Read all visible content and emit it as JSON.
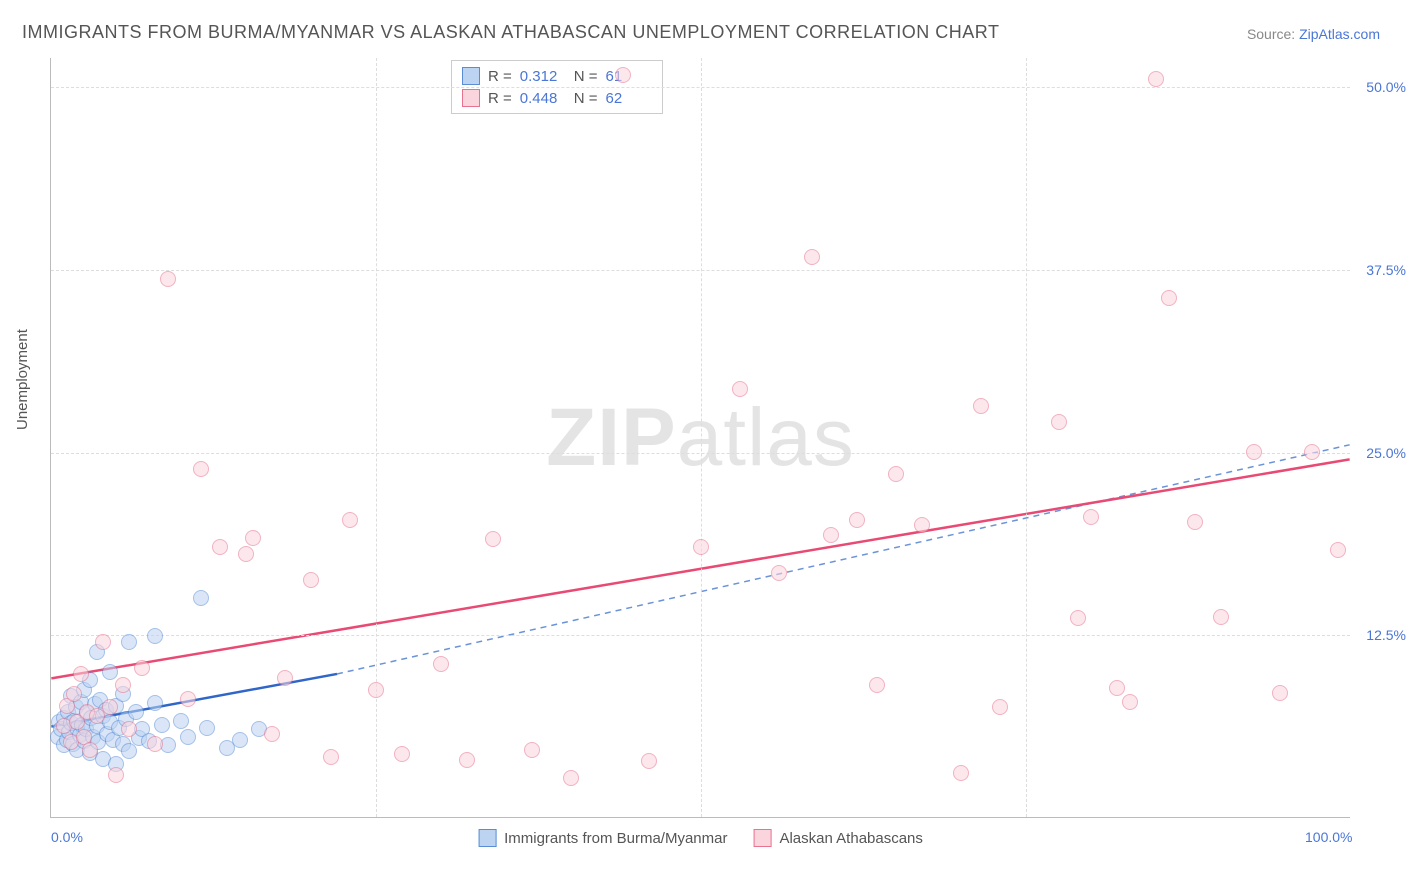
{
  "title": "IMMIGRANTS FROM BURMA/MYANMAR VS ALASKAN ATHABASCAN UNEMPLOYMENT CORRELATION CHART",
  "source_label": "Source:",
  "source_name": "ZipAtlas.com",
  "y_axis_title": "Unemployment",
  "watermark_a": "ZIP",
  "watermark_b": "atlas",
  "chart": {
    "type": "scatter",
    "background_color": "#ffffff",
    "grid_color": "#dddddd",
    "axis_color": "#bbbbbb",
    "text_color": "#555555",
    "value_color": "#4a76d6",
    "xlim": [
      0,
      100
    ],
    "ylim": [
      0,
      52
    ],
    "x_ticks": [
      0,
      100
    ],
    "x_tick_labels": [
      "0.0%",
      "100.0%"
    ],
    "x_minor_gridlines": [
      25,
      50,
      75
    ],
    "y_ticks": [
      12.5,
      25.0,
      37.5,
      50.0
    ],
    "y_tick_labels": [
      "12.5%",
      "25.0%",
      "37.5%",
      "50.0%"
    ],
    "marker_radius": 8,
    "marker_border_width": 1.5,
    "series": [
      {
        "name": "Immigrants from Burma/Myanmar",
        "fill_color": "#bcd3f2",
        "stroke_color": "#5a8dd6",
        "fill_opacity": 0.55,
        "R": "0.312",
        "N": "61",
        "trend_solid": {
          "x1": 0,
          "y1": 6.2,
          "x2": 22,
          "y2": 9.8,
          "width": 2.5,
          "color": "#2f66c8"
        },
        "trend_dashed": {
          "x1": 22,
          "y1": 9.8,
          "x2": 100,
          "y2": 25.5,
          "width": 1.5,
          "color": "#6a93d8"
        },
        "points": [
          [
            0.5,
            5.5
          ],
          [
            0.6,
            6.5
          ],
          [
            0.8,
            6.0
          ],
          [
            1.0,
            4.9
          ],
          [
            1.0,
            6.8
          ],
          [
            1.2,
            5.3
          ],
          [
            1.3,
            7.2
          ],
          [
            1.4,
            5.8
          ],
          [
            1.5,
            6.4
          ],
          [
            1.5,
            8.3
          ],
          [
            1.7,
            5.0
          ],
          [
            1.8,
            6.6
          ],
          [
            1.9,
            7.5
          ],
          [
            2.0,
            4.6
          ],
          [
            2.0,
            6.1
          ],
          [
            2.2,
            5.6
          ],
          [
            2.3,
            7.9
          ],
          [
            2.4,
            6.3
          ],
          [
            2.5,
            5.2
          ],
          [
            2.5,
            8.7
          ],
          [
            2.7,
            6.0
          ],
          [
            2.8,
            7.1
          ],
          [
            3.0,
            4.4
          ],
          [
            3.0,
            9.4
          ],
          [
            3.1,
            6.8
          ],
          [
            3.2,
            5.5
          ],
          [
            3.4,
            7.7
          ],
          [
            3.5,
            6.2
          ],
          [
            3.5,
            11.3
          ],
          [
            3.6,
            5.1
          ],
          [
            3.8,
            8.0
          ],
          [
            4.0,
            6.9
          ],
          [
            4.0,
            4.0
          ],
          [
            4.2,
            7.3
          ],
          [
            4.3,
            5.7
          ],
          [
            4.5,
            6.5
          ],
          [
            4.5,
            9.9
          ],
          [
            4.8,
            5.3
          ],
          [
            5.0,
            7.6
          ],
          [
            5.0,
            3.6
          ],
          [
            5.2,
            6.1
          ],
          [
            5.5,
            8.4
          ],
          [
            5.5,
            5.0
          ],
          [
            5.8,
            6.7
          ],
          [
            6.0,
            4.5
          ],
          [
            6.0,
            12.0
          ],
          [
            6.5,
            7.2
          ],
          [
            6.8,
            5.4
          ],
          [
            7.0,
            6.0
          ],
          [
            7.5,
            5.2
          ],
          [
            8.0,
            7.8
          ],
          [
            8.0,
            12.4
          ],
          [
            8.5,
            6.3
          ],
          [
            9.0,
            4.9
          ],
          [
            10.0,
            6.6
          ],
          [
            10.5,
            5.5
          ],
          [
            11.5,
            15.0
          ],
          [
            12.0,
            6.1
          ],
          [
            13.5,
            4.7
          ],
          [
            14.5,
            5.3
          ],
          [
            16.0,
            6.0
          ]
        ]
      },
      {
        "name": "Alaskan Athabascans",
        "fill_color": "#fbd5de",
        "stroke_color": "#e8738f",
        "fill_opacity": 0.55,
        "R": "0.448",
        "N": "62",
        "trend_solid": {
          "x1": 0,
          "y1": 9.5,
          "x2": 100,
          "y2": 24.5,
          "width": 2.5,
          "color": "#e84a73"
        },
        "points": [
          [
            1.0,
            6.2
          ],
          [
            1.2,
            7.6
          ],
          [
            1.5,
            5.1
          ],
          [
            1.8,
            8.4
          ],
          [
            2.0,
            6.5
          ],
          [
            2.3,
            9.8
          ],
          [
            2.5,
            5.5
          ],
          [
            2.8,
            7.2
          ],
          [
            3.0,
            4.6
          ],
          [
            3.5,
            6.9
          ],
          [
            4.0,
            12.0
          ],
          [
            4.5,
            7.5
          ],
          [
            5.0,
            2.9
          ],
          [
            5.5,
            9.0
          ],
          [
            6.0,
            6.0
          ],
          [
            7.0,
            10.2
          ],
          [
            8.0,
            5.0
          ],
          [
            9.0,
            36.8
          ],
          [
            10.5,
            8.1
          ],
          [
            11.5,
            23.8
          ],
          [
            13.0,
            18.5
          ],
          [
            15.0,
            18.0
          ],
          [
            15.5,
            19.1
          ],
          [
            17.0,
            5.7
          ],
          [
            18.0,
            9.5
          ],
          [
            20.0,
            16.2
          ],
          [
            21.5,
            4.1
          ],
          [
            23.0,
            20.3
          ],
          [
            25.0,
            8.7
          ],
          [
            27.0,
            4.3
          ],
          [
            30.0,
            10.5
          ],
          [
            32.0,
            3.9
          ],
          [
            34.0,
            19.0
          ],
          [
            37.0,
            4.6
          ],
          [
            40.0,
            2.7
          ],
          [
            44.0,
            50.8
          ],
          [
            46.0,
            3.8
          ],
          [
            50.0,
            18.5
          ],
          [
            53.0,
            29.3
          ],
          [
            56.0,
            16.7
          ],
          [
            58.5,
            38.3
          ],
          [
            60.0,
            19.3
          ],
          [
            62.0,
            20.3
          ],
          [
            63.5,
            9.0
          ],
          [
            65.0,
            23.5
          ],
          [
            67.0,
            20.0
          ],
          [
            70.0,
            3.0
          ],
          [
            71.5,
            28.1
          ],
          [
            73.0,
            7.5
          ],
          [
            77.5,
            27.0
          ],
          [
            79.0,
            13.6
          ],
          [
            80.0,
            20.5
          ],
          [
            82.0,
            8.8
          ],
          [
            83.0,
            7.9
          ],
          [
            85.0,
            50.5
          ],
          [
            86.0,
            35.5
          ],
          [
            88.0,
            20.2
          ],
          [
            90.0,
            13.7
          ],
          [
            92.5,
            25.0
          ],
          [
            94.5,
            8.5
          ],
          [
            97.0,
            25.0
          ],
          [
            99.0,
            18.3
          ]
        ]
      }
    ]
  }
}
